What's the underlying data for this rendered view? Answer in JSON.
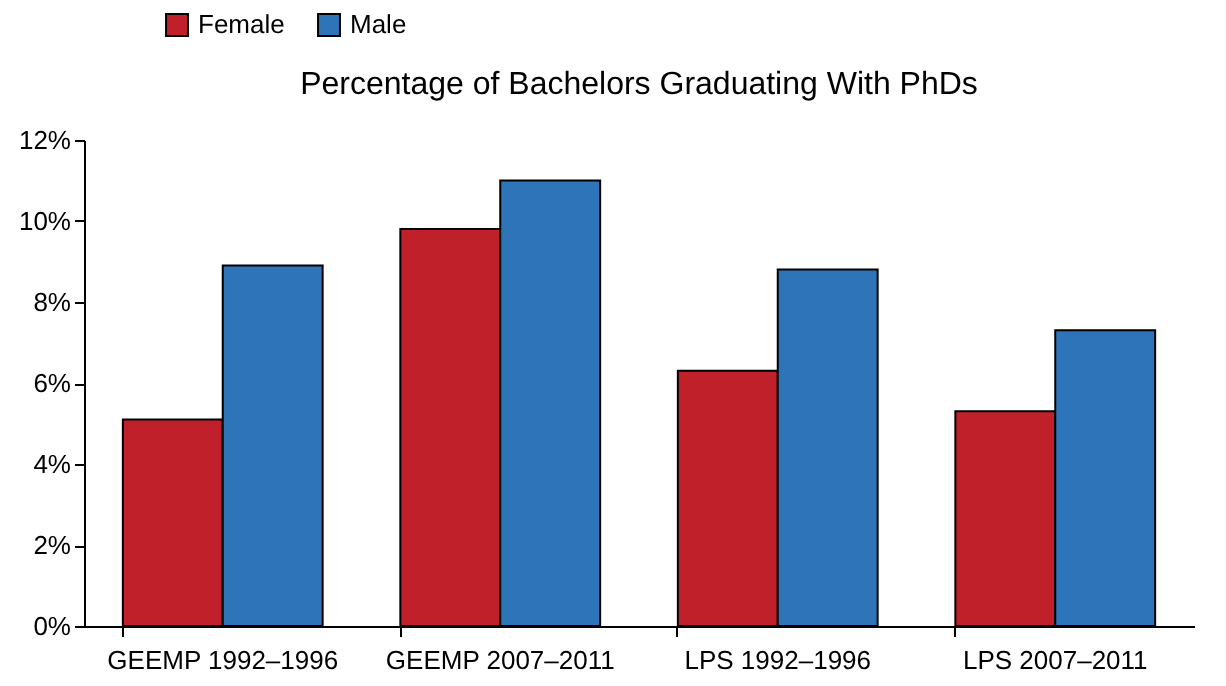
{
  "chart_data": {
    "type": "bar",
    "title": "Percentage of Bachelors Graduating With PhDs",
    "categories": [
      "GEEMP 1992–1996",
      "GEEMP 2007–2011",
      "LPS 1992–1996",
      "LPS 2007–2011"
    ],
    "series": [
      {
        "name": "Female",
        "color": "#c0202a",
        "values": [
          5.1,
          9.8,
          6.3,
          5.3
        ]
      },
      {
        "name": "Male",
        "color": "#2e74b8",
        "values": [
          8.9,
          11.0,
          8.8,
          7.3
        ]
      }
    ],
    "ylim": [
      0,
      12
    ],
    "yticks": [
      {
        "value": 0,
        "label": "0%"
      },
      {
        "value": 2,
        "label": "2%"
      },
      {
        "value": 4,
        "label": "4%"
      },
      {
        "value": 6,
        "label": "6%"
      },
      {
        "value": 8,
        "label": "8%"
      },
      {
        "value": 10,
        "label": "10%"
      },
      {
        "value": 12,
        "label": "12%"
      }
    ],
    "grid": false,
    "legend": "top left"
  }
}
